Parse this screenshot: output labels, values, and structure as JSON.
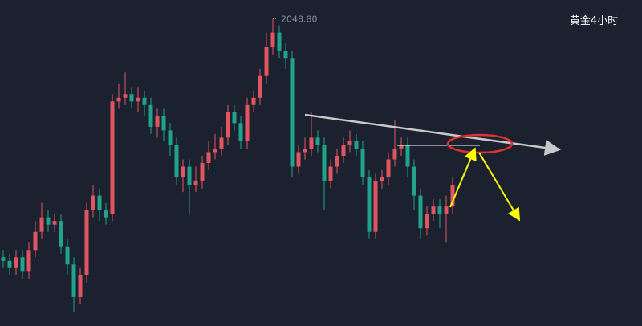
{
  "chart_data": {
    "type": "candlestick",
    "title": "黄金4小时",
    "high_label": "2048.80",
    "up_color": "#e0555f",
    "down_color": "#1fa38a",
    "ylim": [
      1964,
      2054
    ],
    "price_line": 2004,
    "open": [
      1983,
      1982,
      1980,
      1983,
      1979,
      1985,
      1990,
      1994,
      1992,
      1993,
      1986,
      1981,
      1972,
      1978,
      1996,
      2000,
      1996,
      1995,
      2026,
      2027,
      2028,
      2026,
      2027,
      2025,
      2019,
      2022,
      2018,
      2014,
      2005,
      2008,
      2003,
      2004,
      2009,
      2012,
      2013,
      2016,
      2023,
      2020,
      2015,
      2025,
      2027,
      2033,
      2041,
      2045,
      2040,
      2038,
      2008,
      2012,
      2013,
      2016,
      2014,
      2004,
      2008,
      2011,
      2014,
      2015,
      2013,
      2005,
      1990,
      2004,
      2005,
      2010,
      2013,
      2014,
      2008,
      2000,
      1991,
      1995,
      1997,
      1995,
      1997
    ],
    "high": [
      1985,
      1984,
      1985,
      1985,
      1987,
      1993,
      1998,
      1996,
      1995,
      1995,
      1988,
      1983,
      1980,
      1998,
      2003,
      2002,
      1998,
      2028,
      2031,
      2034,
      2030,
      2030,
      2029,
      2027,
      2024,
      2024,
      2020,
      2016,
      2010,
      2010,
      2008,
      2011,
      2015,
      2017,
      2019,
      2025,
      2025,
      2022,
      2027,
      2029,
      2035,
      2045,
      2048.8,
      2047,
      2042,
      2040,
      2014,
      2016,
      2023,
      2018,
      2016,
      2010,
      2013,
      2016,
      2018,
      2017,
      2015,
      2007,
      2006,
      2007,
      2012,
      2021,
      2016,
      2016,
      2010,
      2002,
      1997,
      1999,
      1999,
      2000,
      2005
    ],
    "low": [
      1980,
      1978,
      1978,
      1977,
      1977,
      1983,
      1988,
      1990,
      1990,
      1984,
      1978,
      1968,
      1970,
      1976,
      1994,
      1993,
      1992,
      1993,
      2024,
      2025,
      2024,
      2023,
      2022,
      2017,
      2016,
      2015,
      2011,
      2003,
      2001,
      1995,
      2001,
      2002,
      2007,
      2010,
      2011,
      2014,
      2018,
      2013,
      2013,
      2023,
      2025,
      2031,
      2039,
      2038,
      2035,
      2005,
      2006,
      2010,
      2011,
      2012,
      1996,
      2002,
      2006,
      2009,
      2012,
      2011,
      2003,
      1988,
      1988,
      2002,
      2003,
      2008,
      2011,
      2005,
      1996,
      1988,
      1989,
      1993,
      1991,
      1987,
      1995
    ],
    "close": [
      1982,
      1980,
      1983,
      1979,
      1985,
      1990,
      1994,
      1992,
      1993,
      1986,
      1981,
      1972,
      1978,
      1996,
      2000,
      1996,
      1994,
      2026,
      2027,
      2028,
      2026,
      2027,
      2025,
      2019,
      2022,
      2018,
      2014,
      2005,
      2008,
      2003,
      2004,
      2009,
      2012,
      2013,
      2016,
      2023,
      2020,
      2015,
      2025,
      2027,
      2033,
      2041,
      2045,
      2040,
      2038,
      2008,
      2012,
      2013,
      2016,
      2014,
      2004,
      2008,
      2011,
      2014,
      2015,
      2013,
      2005,
      1990,
      2004,
      2005,
      2010,
      2013,
      2014,
      2008,
      2000,
      1991,
      1995,
      1997,
      1995,
      1997,
      2003
    ]
  }
}
